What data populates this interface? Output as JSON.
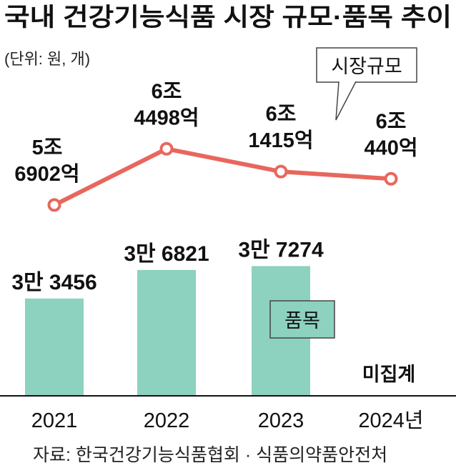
{
  "title": "국내 건강기능식품 시장 규모·품목 추이",
  "unit_note": "(단위: 원, 개)",
  "source": "자료: 한국건강기능식품협회 · 식품의약품안전처",
  "colors": {
    "line": "#e8675d",
    "bar": "#8dd1bf",
    "axis": "#111111"
  },
  "chart_data": {
    "type": "bar+line",
    "categories": [
      "2021",
      "2022",
      "2023",
      "2024년"
    ],
    "series": [
      {
        "name": "시장규모",
        "type": "line",
        "values": [
          56902,
          64498,
          61415,
          60440
        ],
        "labels": [
          [
            "5조",
            "6902억"
          ],
          [
            "6조",
            "4498억"
          ],
          [
            "6조",
            "1415억"
          ],
          [
            "6조",
            "440억"
          ]
        ]
      },
      {
        "name": "품목",
        "type": "bar",
        "values": [
          33456,
          36821,
          37274,
          null
        ],
        "labels": [
          "3만 3456",
          "3만 6821",
          "3만 7274",
          "미집계"
        ]
      }
    ],
    "line_range": [
      51000,
      68000
    ],
    "bar_range": [
      22000,
      40000
    ],
    "grid": false
  }
}
